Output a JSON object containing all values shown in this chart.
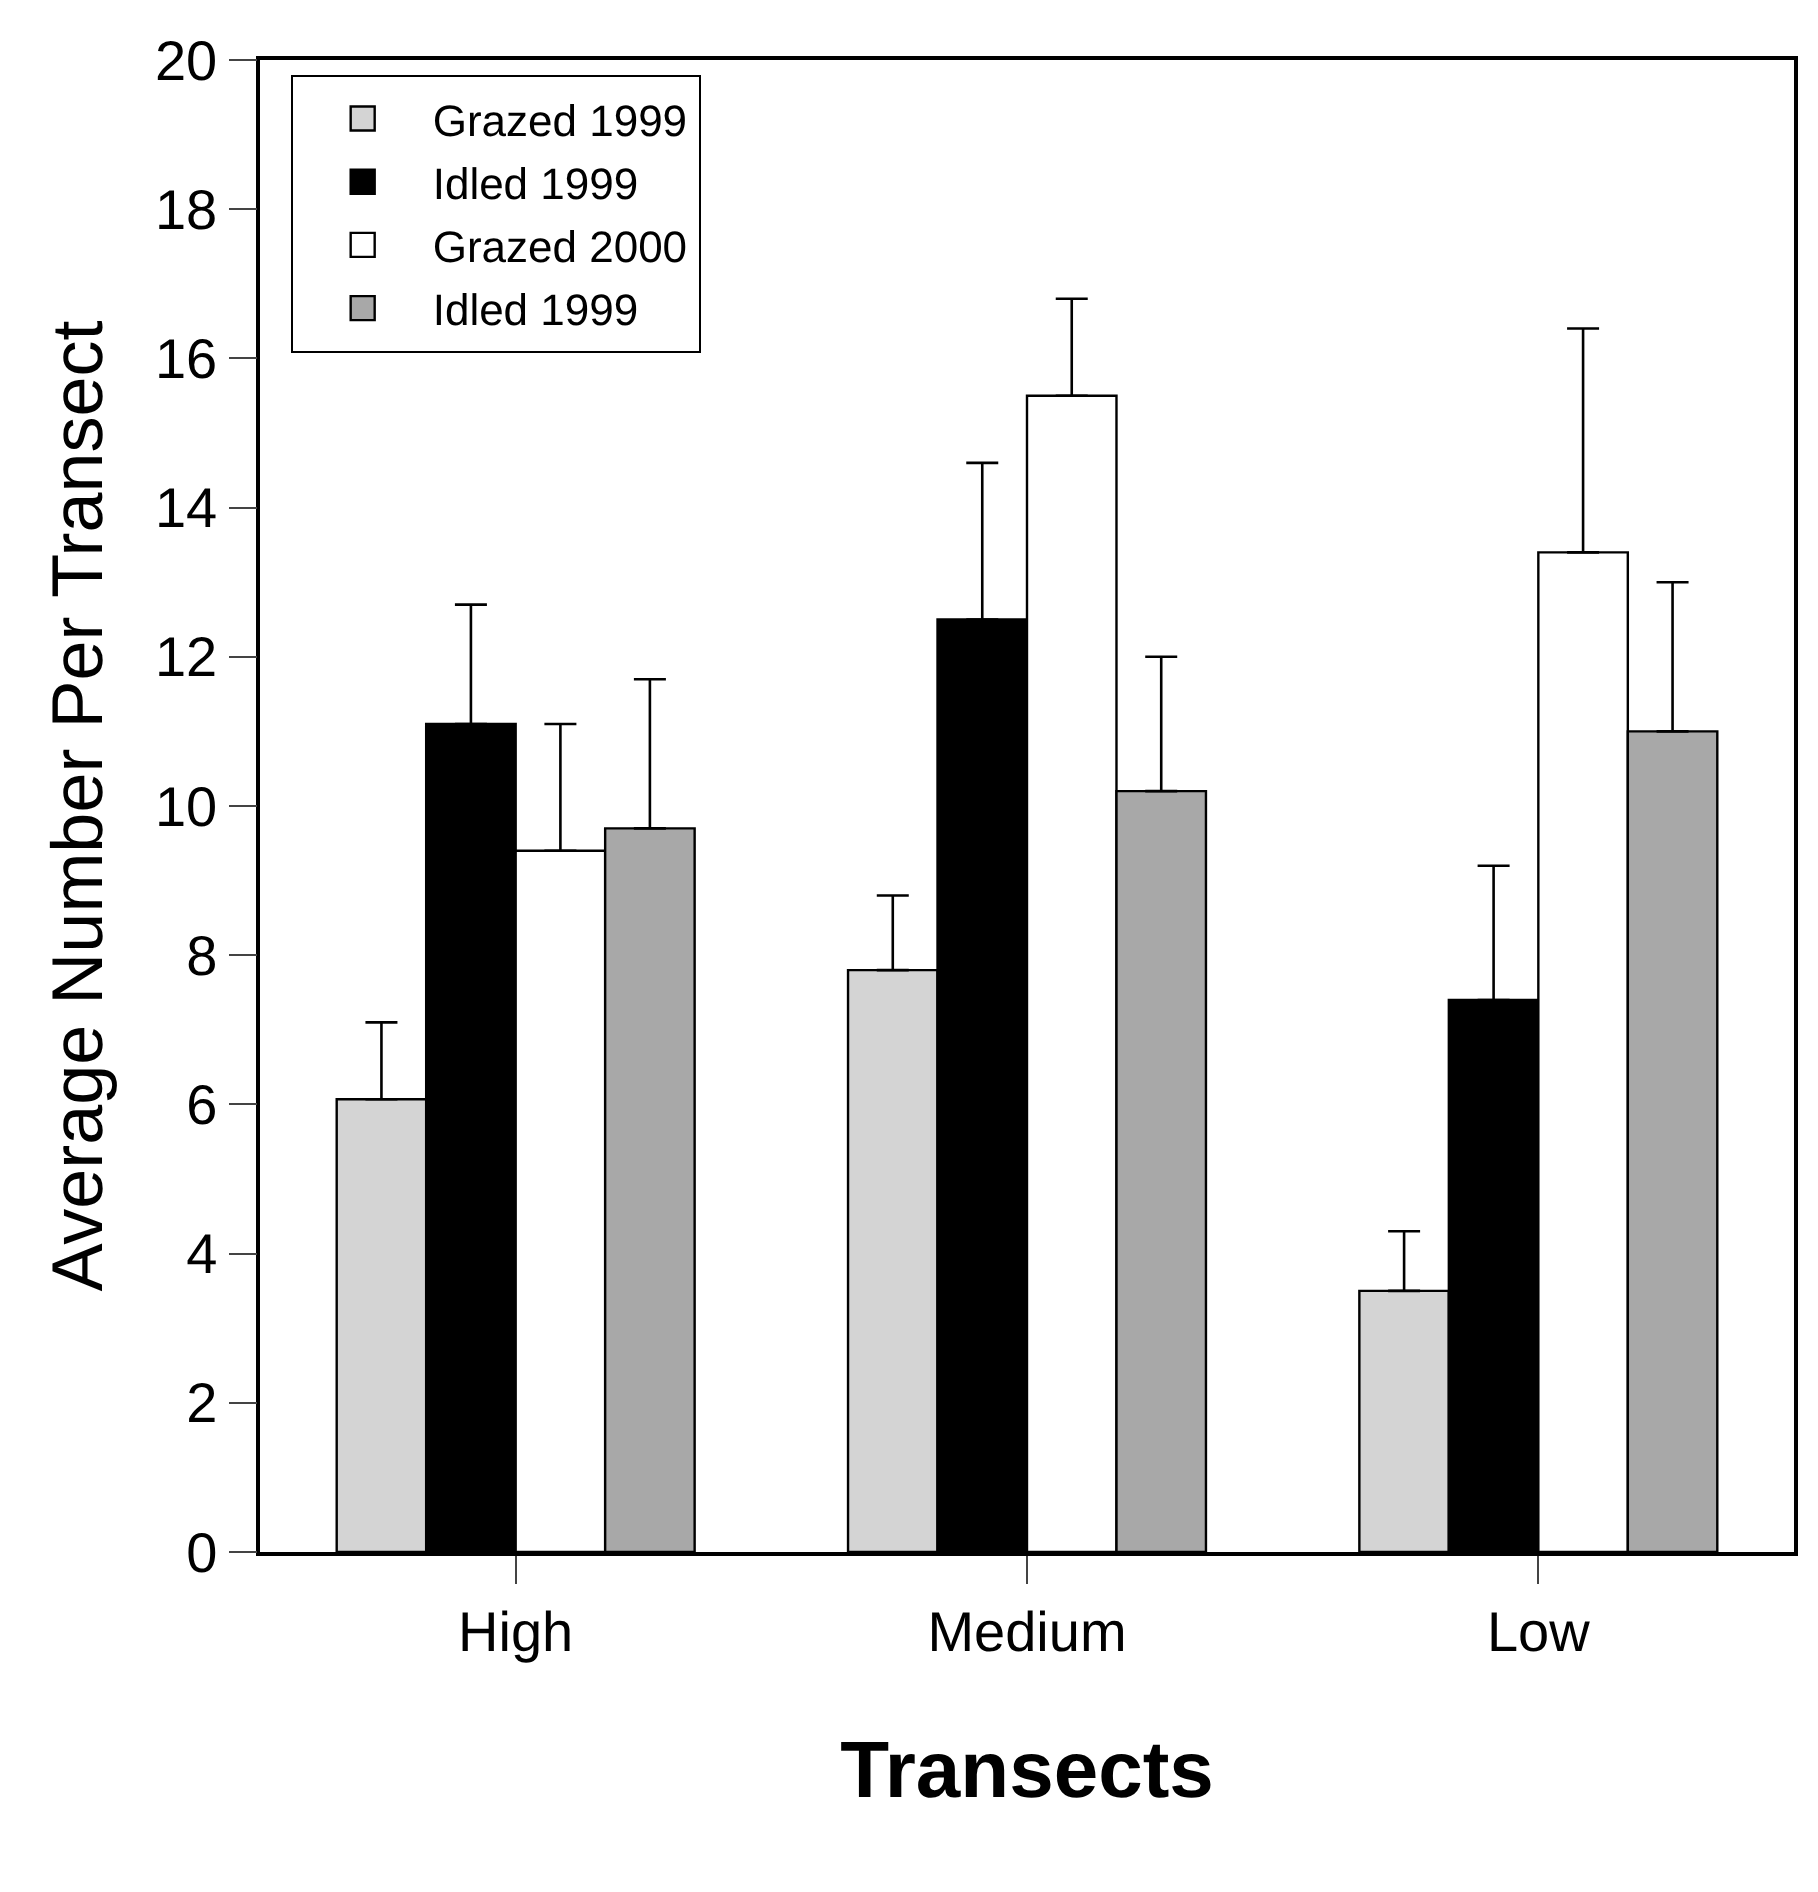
{
  "chart_data": {
    "type": "bar",
    "xlabel": "Transects",
    "ylabel": "Average Number Per Transect",
    "categories": [
      "High",
      "Medium",
      "Low"
    ],
    "series": [
      {
        "name": "Grazed 1999",
        "color": "#d4d4d4",
        "values": [
          6.07,
          7.8,
          3.5
        ],
        "errors": [
          [
            6.07,
            7.1
          ],
          [
            7.8,
            8.8
          ],
          [
            3.5,
            4.3
          ]
        ]
      },
      {
        "name": "Idled 1999",
        "color": "#000000",
        "values": [
          11.1,
          12.5,
          7.4
        ],
        "errors": [
          [
            11.1,
            12.7
          ],
          [
            12.5,
            14.6
          ],
          [
            7.4,
            9.2
          ]
        ]
      },
      {
        "name": "Grazed 2000",
        "color": "#ffffff",
        "values": [
          9.4,
          15.5,
          13.4
        ],
        "errors": [
          [
            9.4,
            11.1
          ],
          [
            15.5,
            16.8
          ],
          [
            13.4,
            16.4
          ]
        ]
      },
      {
        "name": "Idled 1999",
        "color": "#a8a8a8",
        "values": [
          9.7,
          10.2,
          11.0
        ],
        "errors": [
          [
            9.7,
            11.7
          ],
          [
            10.2,
            12.0
          ],
          [
            11.0,
            13.0
          ]
        ]
      }
    ],
    "ylim": [
      0,
      20
    ],
    "yticks": [
      0,
      2,
      4,
      6,
      8,
      10,
      12,
      14,
      16,
      18,
      20
    ],
    "legend": "top left"
  }
}
